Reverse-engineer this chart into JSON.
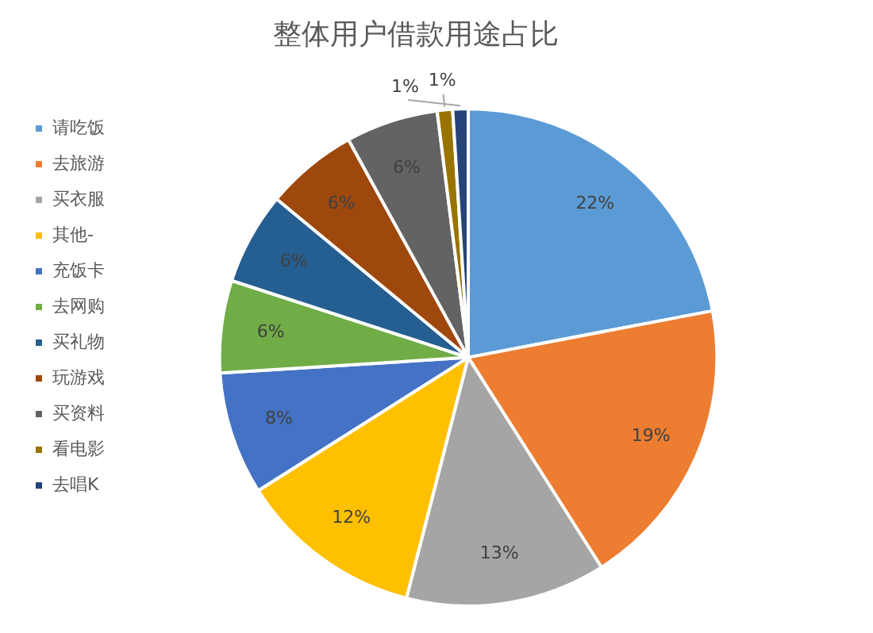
{
  "chart_data": {
    "type": "pie",
    "title": "整体用户借款用途占比",
    "categories": [
      "请吃饭",
      "去旅游",
      "买衣服",
      "其他-",
      "充饭卡",
      "去网购",
      "买礼物",
      "玩游戏",
      "买资料",
      "看电影",
      "去唱K"
    ],
    "values": [
      22,
      19,
      13,
      12,
      8,
      6,
      6,
      6,
      6,
      1,
      1
    ],
    "value_labels": [
      "22%",
      "19%",
      "13%",
      "12%",
      "8%",
      "6%",
      "6%",
      "6%",
      "6%",
      "1%",
      "1%"
    ],
    "colors": [
      "#5b9bd5",
      "#ed7d31",
      "#a5a5a5",
      "#ffc000",
      "#4472c4",
      "#70ad47",
      "#255e91",
      "#9e480e",
      "#636363",
      "#997300",
      "#264478"
    ],
    "legend": "left"
  }
}
